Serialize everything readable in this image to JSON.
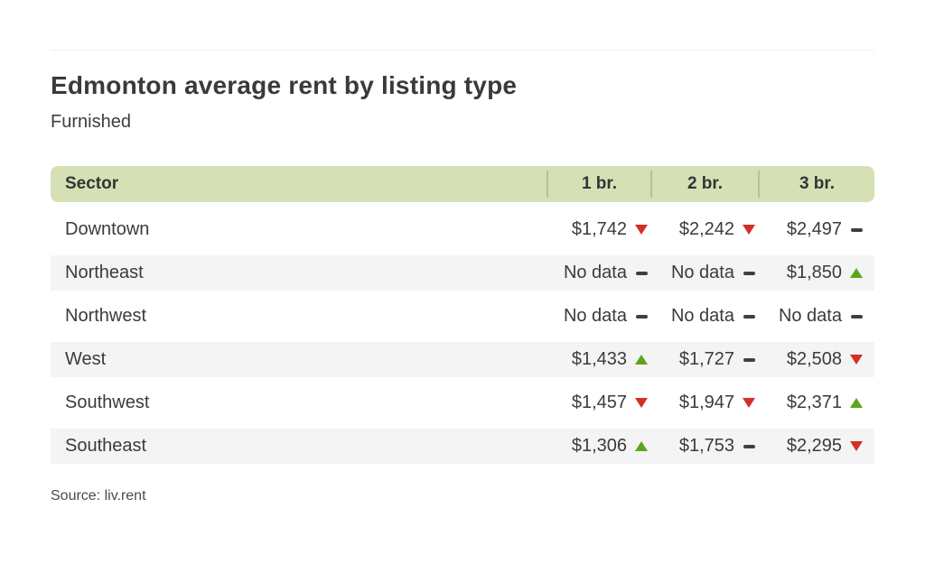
{
  "page": {
    "source": "Source: liv.rent"
  },
  "colors": {
    "header_bg": "#d6e0b5",
    "header_separator": "#b5c48a",
    "alt_row_bg": "#f4f4f4",
    "trend_up": "#5aa61e",
    "trend_down": "#d32f26",
    "trend_flat": "#3f3f3f",
    "text": "#3b3b3b"
  },
  "chart_data": {
    "type": "table",
    "title": "Edmonton average rent by listing type",
    "subtitle": "Furnished",
    "source": "Source: liv.rent",
    "columns": [
      "Sector",
      "1 br.",
      "2 br.",
      "3 br."
    ],
    "rows": [
      {
        "sector": "Downtown",
        "cells": [
          {
            "value": "$1,742",
            "trend": "down"
          },
          {
            "value": "$2,242",
            "trend": "down"
          },
          {
            "value": "$2,497",
            "trend": "flat"
          }
        ]
      },
      {
        "sector": "Northeast",
        "cells": [
          {
            "value": "No data",
            "trend": "flat"
          },
          {
            "value": "No data",
            "trend": "flat"
          },
          {
            "value": "$1,850",
            "trend": "up"
          }
        ]
      },
      {
        "sector": "Northwest",
        "cells": [
          {
            "value": "No data",
            "trend": "flat"
          },
          {
            "value": "No data",
            "trend": "flat"
          },
          {
            "value": "No data",
            "trend": "flat"
          }
        ]
      },
      {
        "sector": "West",
        "cells": [
          {
            "value": "$1,433",
            "trend": "up"
          },
          {
            "value": "$1,727",
            "trend": "flat"
          },
          {
            "value": "$2,508",
            "trend": "down"
          }
        ]
      },
      {
        "sector": "Southwest",
        "cells": [
          {
            "value": "$1,457",
            "trend": "down"
          },
          {
            "value": "$1,947",
            "trend": "down"
          },
          {
            "value": "$2,371",
            "trend": "up"
          }
        ]
      },
      {
        "sector": "Southeast",
        "cells": [
          {
            "value": "$1,306",
            "trend": "up"
          },
          {
            "value": "$1,753",
            "trend": "flat"
          },
          {
            "value": "$2,295",
            "trend": "down"
          }
        ]
      }
    ]
  }
}
